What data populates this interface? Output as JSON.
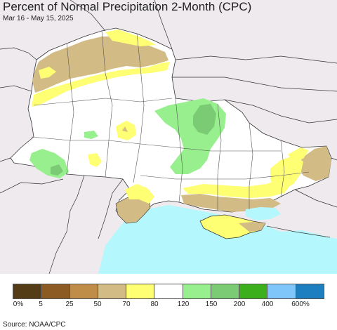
{
  "header": {
    "title": "Percent of Normal Precipitation 2-Month (CPC)",
    "date_range": "Mar 16 - May 15, 2025"
  },
  "legend": {
    "colors": [
      "#543d16",
      "#8c5a23",
      "#c08d48",
      "#d2bb84",
      "#ffff73",
      "#ffffff",
      "#97ef8d",
      "#7bcb75",
      "#3cb01c",
      "#7fc6fb",
      "#1e7fc0"
    ],
    "labels": [
      "0%",
      "5",
      "25",
      "50",
      "70",
      "80",
      "120",
      "150",
      "200",
      "400",
      "600%"
    ]
  },
  "footer": {
    "source": "Source: NOAA/CPC"
  },
  "map_colors": {
    "outside": "#eeeaee",
    "sea": "#b4f8fd",
    "normal": "#ffffff",
    "below_50_70": "#d2bb84",
    "below_70_80": "#ffff73",
    "above_120_150": "#97ef8d",
    "above_150_200": "#7bcb75"
  }
}
